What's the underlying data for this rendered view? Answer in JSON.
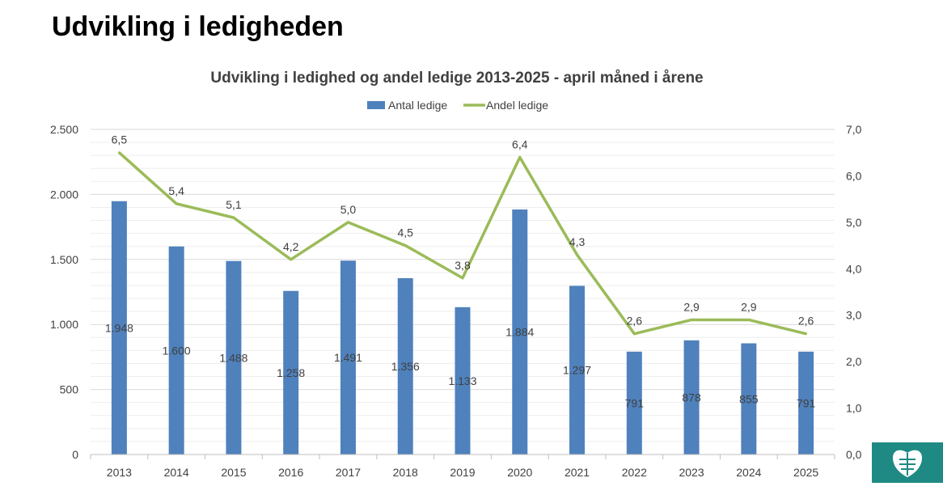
{
  "slide": {
    "title": "Udvikling i ledigheden"
  },
  "chart_data": {
    "type": "bar",
    "title": "Udvikling i ledighed og andel ledige 2013-2025 - april måned i årene",
    "categories": [
      "2013",
      "2014",
      "2015",
      "2016",
      "2017",
      "2018",
      "2019",
      "2020",
      "2021",
      "2022",
      "2023",
      "2024",
      "2025"
    ],
    "series": [
      {
        "name": "Antal ledige",
        "type": "bar",
        "axis": "left",
        "color": "#4f81bd",
        "values": [
          1948,
          1600,
          1488,
          1258,
          1491,
          1356,
          1133,
          1884,
          1297,
          791,
          878,
          855,
          791
        ],
        "labels": [
          "1.948",
          "1.600",
          "1.488",
          "1.258",
          "1.491",
          "1.356",
          "1.133",
          "1.884",
          "1.297",
          "791",
          "878",
          "855",
          "791"
        ]
      },
      {
        "name": "Andel ledige",
        "type": "line",
        "axis": "right",
        "color": "#9bbb59",
        "values": [
          6.5,
          5.4,
          5.1,
          4.2,
          5.0,
          4.5,
          3.8,
          6.4,
          4.3,
          2.6,
          2.9,
          2.9,
          2.6
        ],
        "labels": [
          "6,5",
          "5,4",
          "5,1",
          "4,2",
          "5,0",
          "4,5",
          "3,8",
          "6,4",
          "4,3",
          "2,6",
          "2,9",
          "2,9",
          "2,6"
        ]
      }
    ],
    "y_left": {
      "min": 0,
      "max": 2500,
      "ticks": [
        0,
        500,
        1000,
        1500,
        2000,
        2500
      ],
      "tick_labels": [
        "0",
        "500",
        "1.000",
        "1.500",
        "2.000",
        "2.500"
      ]
    },
    "y_right": {
      "min": 0,
      "max": 7,
      "ticks": [
        0,
        1,
        2,
        3,
        4,
        5,
        6,
        7
      ],
      "tick_labels": [
        "0,0",
        "1,0",
        "2,0",
        "3,0",
        "4,0",
        "5,0",
        "6,0",
        "7,0"
      ]
    },
    "grid": true,
    "legend_position": "top"
  },
  "colors": {
    "bar": "#4f81bd",
    "line": "#9bbb59",
    "grid": "#d9d9d9",
    "logo_tab": "#1f8a84"
  },
  "logo": {
    "icon": "municipal-crest-icon"
  }
}
